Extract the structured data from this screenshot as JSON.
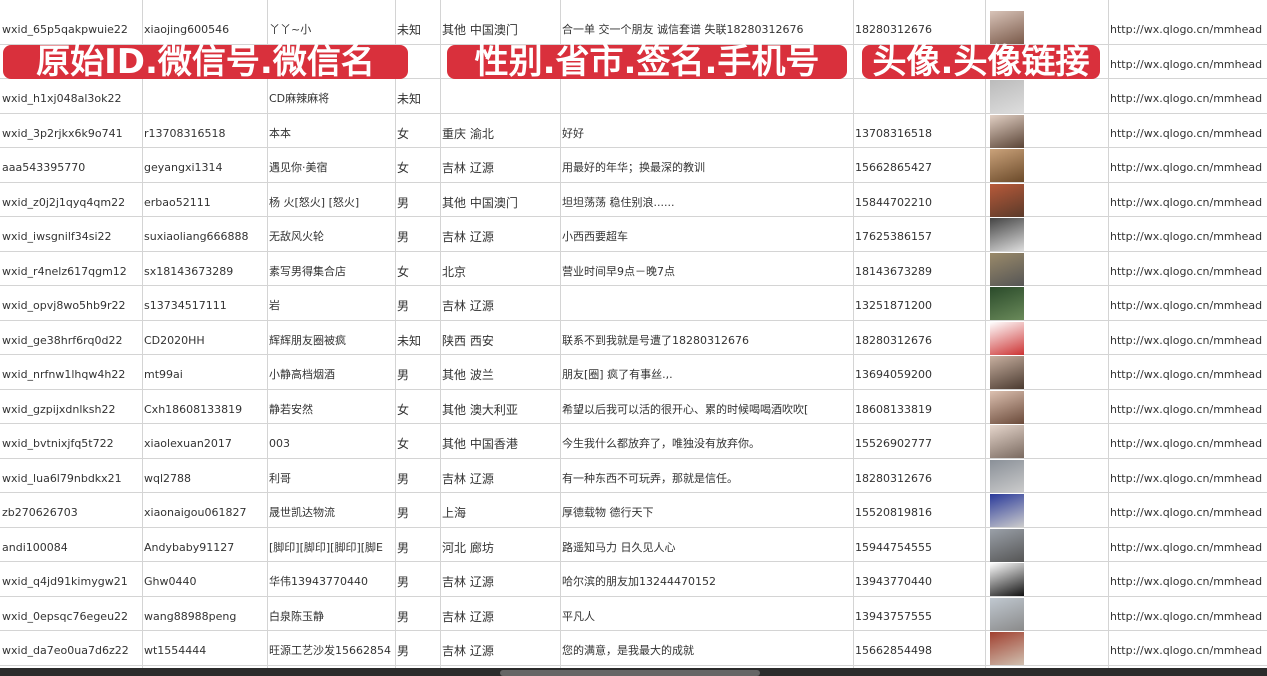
{
  "rows": [
    {
      "id": "wxid_65p5qakpwuie22",
      "wxno": "xiaojing600546",
      "name": "丫丫~小",
      "gender": "未知",
      "region": "其他 中国澳门",
      "sign": "合一单 交一个朋友 诚信套谱 失联18280312676",
      "phone": "18280312676",
      "link": "http://wx.qlogo.cn/mmhead"
    },
    {
      "id": "",
      "wxno": "",
      "name": "",
      "gender": "",
      "region": "",
      "sign": "",
      "phone": "",
      "link": "http://wx.qlogo.cn/mmhead"
    },
    {
      "id": "wxid_h1xj048al3ok22",
      "wxno": "",
      "name": "CD麻辣麻将",
      "gender": "未知",
      "region": "",
      "sign": "",
      "phone": "",
      "link": "http://wx.qlogo.cn/mmhead"
    },
    {
      "id": "wxid_3p2rjkx6k9o741",
      "wxno": "r13708316518",
      "name": "本本",
      "gender": "女",
      "region": "重庆 渝北",
      "sign": "好好",
      "phone": "13708316518",
      "link": "http://wx.qlogo.cn/mmhead"
    },
    {
      "id": "aaa543395770",
      "wxno": "geyangxi1314",
      "name": "遇见你·美宿",
      "gender": "女",
      "region": "吉林 辽源",
      "sign": "用最好的年华；换最深的教训",
      "phone": "15662865427",
      "link": "http://wx.qlogo.cn/mmhead"
    },
    {
      "id": "wxid_z0j2j1qyq4qm22",
      "wxno": "erbao52111",
      "name": "杨 火[怒火] [怒火]",
      "gender": "男",
      "region": "其他 中国澳门",
      "sign": "坦坦荡荡 稳住别浪......",
      "phone": "15844702210",
      "link": "http://wx.qlogo.cn/mmhead"
    },
    {
      "id": "wxid_iwsgnilf34si22",
      "wxno": "suxiaoliang666888",
      "name": "无敌风火轮",
      "gender": "男",
      "region": "吉林 辽源",
      "sign": "小西西要超车",
      "phone": "17625386157",
      "link": "http://wx.qlogo.cn/mmhead"
    },
    {
      "id": "wxid_r4nelz617qgm12",
      "wxno": "sx18143673289",
      "name": "素写男得集合店",
      "gender": "女",
      "region": "北京",
      "sign": "营业时间早9点－晚7点",
      "phone": "18143673289",
      "link": "http://wx.qlogo.cn/mmhead"
    },
    {
      "id": "wxid_opvj8wo5hb9r22",
      "wxno": "s13734517111",
      "name": "岩",
      "gender": "男",
      "region": "吉林 辽源",
      "sign": "",
      "phone": "13251871200",
      "link": "http://wx.qlogo.cn/mmhead"
    },
    {
      "id": "wxid_ge38hrf6rq0d22",
      "wxno": "CD2020HH",
      "name": "辉辉朋友圈被疯",
      "gender": "未知",
      "region": "陕西 西安",
      "sign": "联系不到我就是号遭了18280312676",
      "phone": "18280312676",
      "link": "http://wx.qlogo.cn/mmhead"
    },
    {
      "id": "wxid_nrfnw1lhqw4h22",
      "wxno": "mt99ai",
      "name": "小静高档烟酒",
      "gender": "男",
      "region": "其他 波兰",
      "sign": "朋友[圈] 疯了有事丝.,.",
      "phone": "13694059200",
      "link": "http://wx.qlogo.cn/mmhead"
    },
    {
      "id": "wxid_gzpijxdnlksh22",
      "wxno": "Cxh18608133819",
      "name": "静若安然",
      "gender": "女",
      "region": "其他 澳大利亚",
      "sign": "希望以后我可以活的很开心、累的时候喝喝酒吹吹[",
      "phone": "18608133819",
      "link": "http://wx.qlogo.cn/mmhead"
    },
    {
      "id": "wxid_bvtnixjfq5t722",
      "wxno": "xiaolexuan2017",
      "name": "003",
      "gender": "女",
      "region": "其他 中国香港",
      "sign": "今生我什么都放弃了，唯独没有放弃你。",
      "phone": "15526902777",
      "link": "http://wx.qlogo.cn/mmhead"
    },
    {
      "id": "wxid_lua6l79nbdkx21",
      "wxno": "wql2788",
      "name": "利哥",
      "gender": "男",
      "region": "吉林 辽源",
      "sign": "有一种东西不可玩弄，那就是信任。",
      "phone": "18280312676",
      "link": "http://wx.qlogo.cn/mmhead"
    },
    {
      "id": "zb270626703",
      "wxno": "xiaonaigou061827",
      "name": "晟世凯达物流",
      "gender": "男",
      "region": "上海",
      "sign": "厚德载物 德行天下",
      "phone": "15520819816",
      "link": "http://wx.qlogo.cn/mmhead"
    },
    {
      "id": "andi100084",
      "wxno": "Andybaby91127",
      "name": "[脚印][脚印][脚印][脚E",
      "gender": "男",
      "region": "河北 廊坊",
      "sign": "路遥知马力 日久见人心",
      "phone": "15944754555",
      "link": "http://wx.qlogo.cn/mmhead"
    },
    {
      "id": "wxid_q4jd91kimygw21",
      "wxno": "Ghw0440",
      "name": "华伟13943770440",
      "gender": "男",
      "region": "吉林 辽源",
      "sign": "哈尔滨的朋友加13244470152",
      "phone": "13943770440",
      "link": "http://wx.qlogo.cn/mmhead"
    },
    {
      "id": "wxid_0epsqc76egeu22",
      "wxno": "wang88988peng",
      "name": "白泉陈玉静",
      "gender": "男",
      "region": "吉林 辽源",
      "sign": "平凡人",
      "phone": "13943757555",
      "link": "http://wx.qlogo.cn/mmhead"
    },
    {
      "id": "wxid_da7eo0ua7d6z22",
      "wxno": "wt1554444",
      "name": "旺源工艺沙发15662854",
      "gender": "男",
      "region": "吉林 辽源",
      "sign": "您的满意，是我最大的成就",
      "phone": "15662854498",
      "link": "http://wx.qlogo.cn/mmhead"
    }
  ],
  "overlay": {
    "label1": "原始ID.微信号.微信名",
    "label2": "性别.省市.签名.手机号",
    "label3": "头像.头像链接",
    "color": "#d9303c"
  }
}
